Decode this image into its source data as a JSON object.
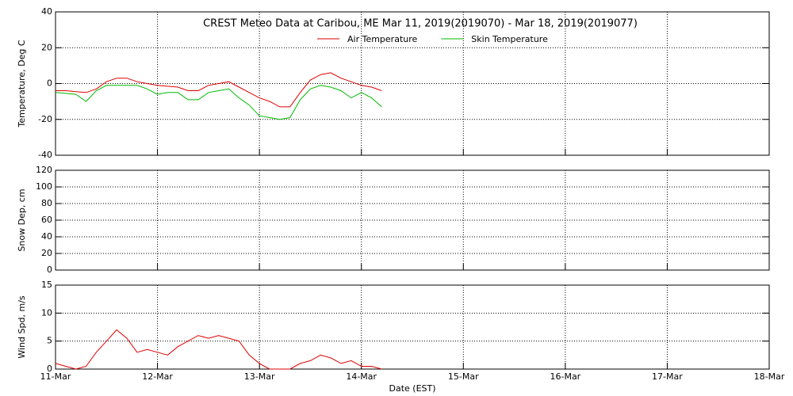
{
  "chart_data": [
    {
      "type": "line",
      "title": "CREST Meteo Data at Caribou, ME   Mar 11, 2019(2019070) - Mar 18, 2019(2019077)",
      "ylabel": "Temperature, Deg C",
      "x": [
        11.0,
        11.1,
        11.2,
        11.3,
        11.4,
        11.5,
        11.6,
        11.7,
        11.8,
        11.9,
        12.0,
        12.1,
        12.2,
        12.3,
        12.4,
        12.5,
        12.6,
        12.7,
        12.8,
        12.9,
        13.0,
        13.1,
        13.2,
        13.3,
        13.4,
        13.5,
        13.6,
        13.7,
        13.8,
        13.9,
        14.0,
        14.1,
        14.2
      ],
      "series": [
        {
          "name": "Air Temperature",
          "color": "#dd0000",
          "values": [
            -4,
            -4,
            -4.5,
            -5,
            -3,
            1,
            3,
            3,
            1,
            0,
            -1,
            -1.5,
            -2,
            -4,
            -4,
            -1,
            0,
            1,
            -2,
            -5,
            -8,
            -10,
            -13,
            -13,
            -5,
            2,
            5,
            6,
            3,
            1,
            -1,
            -2,
            -4
          ]
        },
        {
          "name": "Skin Temperature",
          "color": "#00bb00",
          "values": [
            -5,
            -5.5,
            -6,
            -10,
            -4,
            -1,
            -1,
            -1,
            -1,
            -3,
            -6,
            -5,
            -5,
            -9,
            -9,
            -5,
            -4,
            -3,
            -8,
            -12,
            -18,
            -19,
            -20,
            -19,
            -9,
            -3,
            -1,
            -2,
            -4,
            -8,
            -5,
            -8,
            -13
          ]
        }
      ],
      "xlim": [
        11,
        18
      ],
      "ylim": [
        -40,
        40
      ],
      "yticks": [
        -40,
        -20,
        0,
        20,
        40
      ],
      "grid": true
    },
    {
      "type": "line",
      "ylabel": "Snow Dep, cm",
      "xlim": [
        11,
        18
      ],
      "ylim": [
        0,
        120
      ],
      "yticks": [
        0,
        20,
        40,
        60,
        80,
        100,
        120
      ],
      "grid": true
    },
    {
      "type": "line",
      "ylabel": "Wind Spd, m/s",
      "xlabel": "Date (EST)",
      "x": [
        11.0,
        11.1,
        11.2,
        11.3,
        11.4,
        11.5,
        11.6,
        11.7,
        11.8,
        11.9,
        12.0,
        12.1,
        12.2,
        12.3,
        12.4,
        12.5,
        12.6,
        12.7,
        12.8,
        12.9,
        13.0,
        13.1,
        13.2,
        13.3,
        13.4,
        13.5,
        13.6,
        13.7,
        13.8,
        13.9,
        14.0,
        14.1,
        14.2
      ],
      "series": [
        {
          "color": "#dd0000",
          "values": [
            1,
            0.5,
            0,
            0.5,
            3,
            5,
            7,
            5.5,
            3,
            3.5,
            3,
            2.5,
            4,
            5,
            6,
            5.5,
            6,
            5.5,
            5,
            2.5,
            1,
            0,
            0,
            0,
            1,
            1.5,
            2.5,
            2,
            1,
            1.5,
            0.5,
            0.5,
            0
          ]
        }
      ],
      "xlim": [
        11,
        18
      ],
      "xticks": [
        {
          "value": 11,
          "label": "11-Mar"
        },
        {
          "value": 12,
          "label": "12-Mar"
        },
        {
          "value": 13,
          "label": "13-Mar"
        },
        {
          "value": 14,
          "label": "14-Mar"
        },
        {
          "value": 15,
          "label": "15-Mar"
        },
        {
          "value": 16,
          "label": "16-Mar"
        },
        {
          "value": 17,
          "label": "17-Mar"
        },
        {
          "value": 18,
          "label": "18-Mar"
        }
      ],
      "ylim": [
        0,
        15
      ],
      "yticks": [
        0,
        5,
        10,
        15
      ],
      "grid": true
    }
  ]
}
